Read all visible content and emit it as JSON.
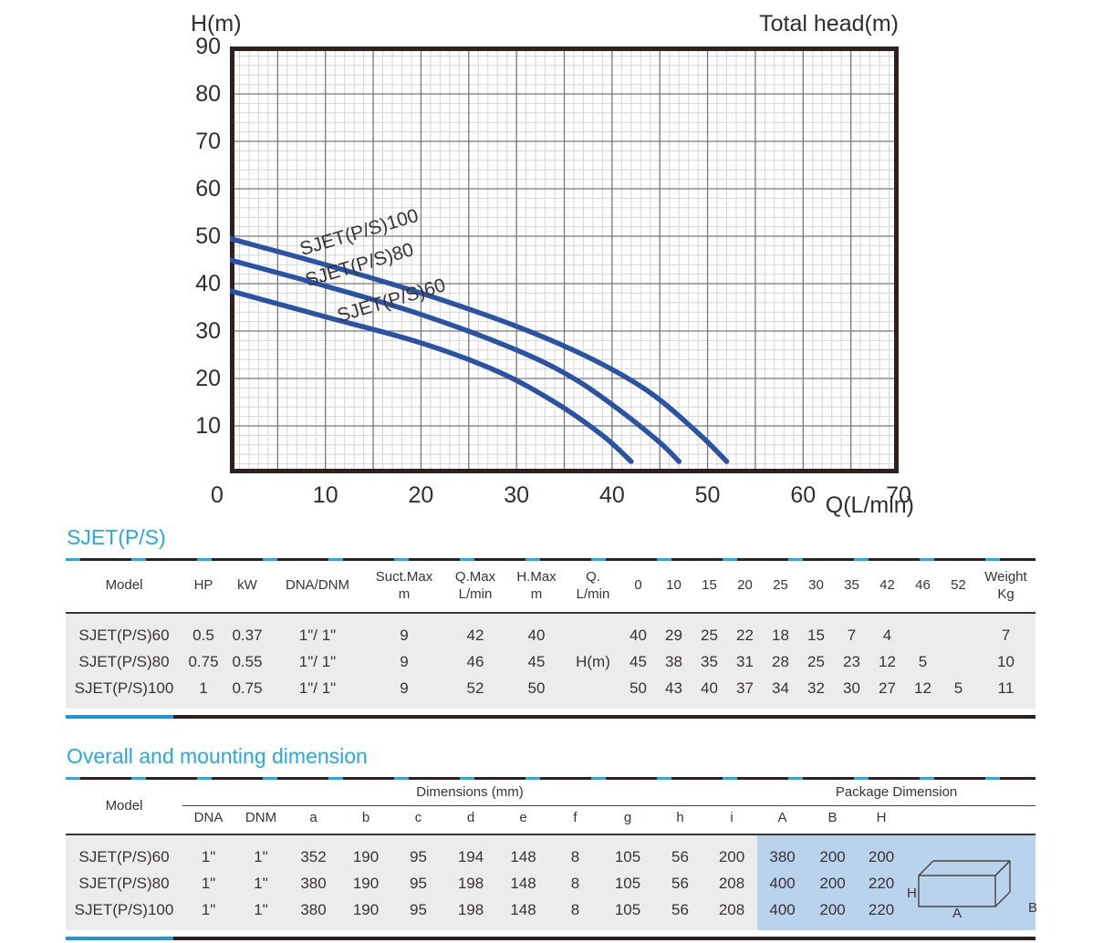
{
  "colors": {
    "accent_cyan": "#29a9e1",
    "curve_blue": "#2a53a5",
    "bottom_bar_blue": "#2095d6",
    "line_dark": "#2b2220",
    "text_dark": "#3a3234",
    "row_bg": "#ececec",
    "package_bg": "#b9d3ec",
    "grid_minor": "#d7d5d7",
    "grid_major": "#7c7779"
  },
  "chart_data": {
    "type": "line",
    "y_axis_title": "H(m)",
    "y_axis_title_right": "Total head(m)",
    "x_axis_title": "Q(L/min)",
    "xlim": [
      0,
      70
    ],
    "ylim": [
      0,
      90
    ],
    "x_ticks": [
      0,
      10,
      20,
      30,
      40,
      50,
      60,
      70
    ],
    "y_ticks": [
      10,
      20,
      30,
      40,
      50,
      60,
      70,
      80,
      90
    ],
    "grid": {
      "x_minor_step": 1,
      "x_major_step": 5,
      "y_minor_step": 2,
      "y_major_step": 10
    },
    "legend_position": "labels-on-curves",
    "series": [
      {
        "name": "SJET(P/S)100",
        "label_anchor": [
          7.1,
          49.3
        ],
        "points": [
          [
            0,
            49.5
          ],
          [
            10,
            44
          ],
          [
            20,
            38
          ],
          [
            30,
            31
          ],
          [
            38,
            24
          ],
          [
            44,
            17
          ],
          [
            49,
            8.5
          ],
          [
            52,
            2.5
          ]
        ]
      },
      {
        "name": "SJET(P/S)80",
        "label_anchor": [
          7.6,
          42.6
        ],
        "points": [
          [
            0,
            45
          ],
          [
            10,
            39.5
          ],
          [
            20,
            33.5
          ],
          [
            30,
            26
          ],
          [
            36,
            20
          ],
          [
            41,
            13
          ],
          [
            45,
            6.5
          ],
          [
            47,
            2.5
          ]
        ]
      },
      {
        "name": "SJET(P/S)60",
        "label_anchor": [
          11.0,
          35.2
        ],
        "points": [
          [
            0,
            38.5
          ],
          [
            10,
            33
          ],
          [
            20,
            27.5
          ],
          [
            28,
            21.5
          ],
          [
            34,
            15
          ],
          [
            39,
            8
          ],
          [
            42,
            2.5
          ]
        ]
      }
    ]
  },
  "performance_table": {
    "title": "SJET(P/S)",
    "headers": [
      "Model",
      "HP",
      "kW",
      "DNA/DNM",
      "Suct.Max\nm",
      "Q.Max\nL/min",
      "H.Max\nm",
      "Q.\nL/min",
      "0",
      "10",
      "15",
      "20",
      "25",
      "30",
      "35",
      "42",
      "46",
      "52",
      "Weight\nKg"
    ],
    "rows": [
      [
        "SJET(P/S)60",
        "0.5",
        "0.37",
        "1\"/ 1\"",
        "9",
        "42",
        "40",
        "",
        "40",
        "29",
        "25",
        "22",
        "18",
        "15",
        "7",
        "4",
        "",
        "",
        "7"
      ],
      [
        "SJET(P/S)80",
        "0.75",
        "0.55",
        "1\"/ 1\"",
        "9",
        "46",
        "45",
        "H(m)",
        "45",
        "38",
        "35",
        "31",
        "28",
        "25",
        "23",
        "12",
        "5",
        "",
        "10"
      ],
      [
        "SJET(P/S)100",
        "1",
        "0.75",
        "1\"/ 1\"",
        "9",
        "52",
        "50",
        "",
        "50",
        "43",
        "40",
        "37",
        "34",
        "32",
        "30",
        "27",
        "12",
        "5",
        "11"
      ]
    ]
  },
  "dimension_table": {
    "title": "Overall and mounting dimension",
    "model_header": "Model",
    "dims_group": "Dimensions (mm)",
    "package_group": "Package Dimension",
    "subheaders": [
      "DNA",
      "DNM",
      "a",
      "b",
      "c",
      "d",
      "e",
      "f",
      "g",
      "h",
      "i",
      "A",
      "B",
      "H"
    ],
    "rows": [
      [
        "SJET(P/S)60",
        "1\"",
        "1\"",
        "352",
        "190",
        "95",
        "194",
        "148",
        "8",
        "105",
        "56",
        "200",
        "380",
        "200",
        "200"
      ],
      [
        "SJET(P/S)80",
        "1\"",
        "1\"",
        "380",
        "190",
        "95",
        "198",
        "148",
        "8",
        "105",
        "56",
        "208",
        "400",
        "200",
        "220"
      ],
      [
        "SJET(P/S)100",
        "1\"",
        "1\"",
        "380",
        "190",
        "95",
        "198",
        "148",
        "8",
        "105",
        "56",
        "208",
        "400",
        "200",
        "220"
      ]
    ],
    "box_diagram_labels": {
      "height": "H",
      "length": "A",
      "width": "B"
    }
  }
}
